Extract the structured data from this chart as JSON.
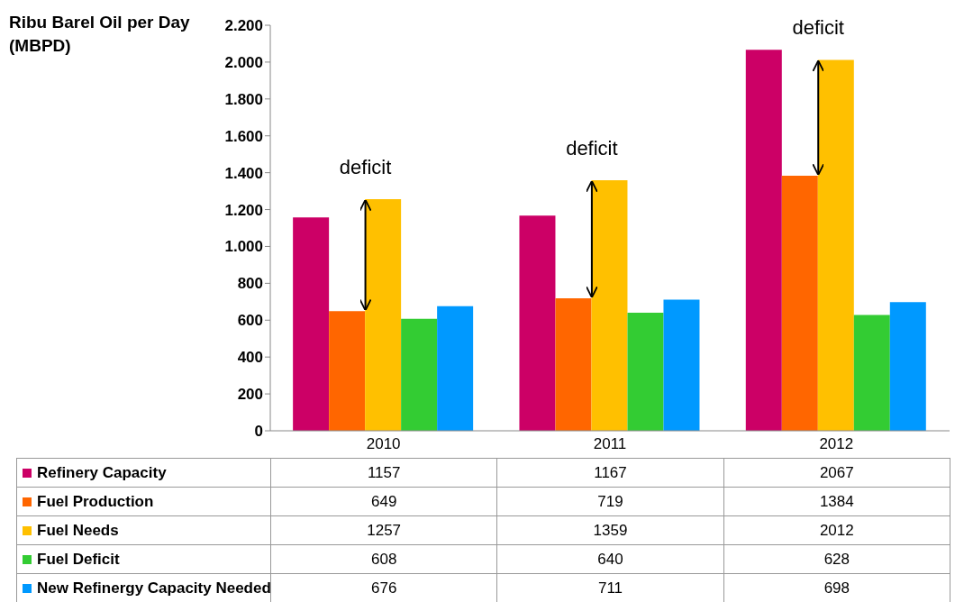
{
  "chart_data": {
    "type": "bar",
    "ylabel": "Ribu Barel Oil per Day (MBPD)",
    "categories": [
      "2010",
      "2011",
      "2012"
    ],
    "series": [
      {
        "name": "Refinery Capacity",
        "color": "#cc0066",
        "values": [
          1157,
          1167,
          2067
        ]
      },
      {
        "name": "Fuel Production",
        "color": "#ff6600",
        "values": [
          649,
          719,
          1384
        ]
      },
      {
        "name": "Fuel Needs",
        "color": "#ffc000",
        "values": [
          1257,
          1359,
          2012
        ]
      },
      {
        "name": "Fuel Deficit",
        "color": "#33cc33",
        "values": [
          608,
          640,
          628
        ]
      },
      {
        "name": "New Refinergy Capacity Needed",
        "color": "#0099ff",
        "values": [
          676,
          711,
          698
        ]
      }
    ],
    "ylim": [
      0,
      2200
    ],
    "yticks": [
      0,
      200,
      400,
      600,
      800,
      {
        "value": 1000,
        "label": "1.000"
      },
      {
        "value": 1200,
        "label": "1.200"
      },
      {
        "value": 1400,
        "label": "1.400"
      },
      {
        "value": 1600,
        "label": "1.600"
      },
      {
        "value": 1800,
        "label": "1.800"
      },
      {
        "value": 2000,
        "label": "2.000"
      },
      {
        "value": 2200,
        "label": "2.200"
      }
    ],
    "annotations": [
      "deficit",
      "deficit",
      "deficit"
    ],
    "data_labels": true,
    "legend": "bottom",
    "grid": false
  }
}
